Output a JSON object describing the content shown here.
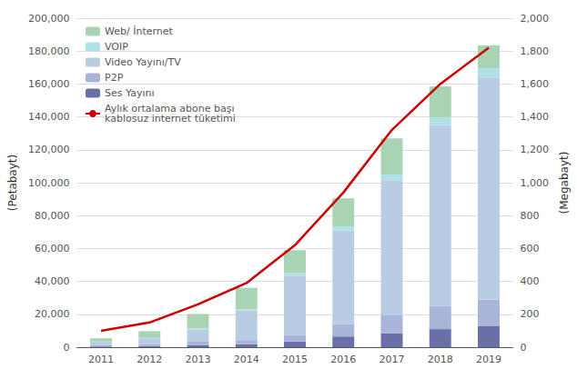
{
  "chart_data": {
    "type": "bar",
    "stacked": true,
    "categories": [
      "2011",
      "2012",
      "2013",
      "2014",
      "2015",
      "2016",
      "2017",
      "2018",
      "2019"
    ],
    "series": [
      {
        "name": "Ses Yayını",
        "color": "#6b6fa8",
        "values": [
          400,
          700,
          1200,
          1800,
          3500,
          6500,
          8500,
          11000,
          13000
        ]
      },
      {
        "name": "P2P",
        "color": "#a8b4d8",
        "values": [
          800,
          1200,
          2500,
          2500,
          4000,
          7500,
          11000,
          14000,
          16000
        ]
      },
      {
        "name": "Video Yayını/TV",
        "color": "#b8cce4",
        "values": [
          2000,
          3500,
          7000,
          18000,
          36000,
          57000,
          82000,
          110000,
          135000
        ]
      },
      {
        "name": "VOIP",
        "color": "#b0e0e8",
        "values": [
          200,
          300,
          500,
          800,
          1500,
          2500,
          3500,
          4500,
          5500
        ]
      },
      {
        "name": "Web/ İnternet",
        "color": "#a8d4b4",
        "values": [
          2000,
          4000,
          9000,
          13000,
          14000,
          17000,
          22000,
          19000,
          14000
        ]
      },
      {
        "name": "Aylık ortalama abone başı",
        "type": "line",
        "axis": "y2",
        "color": "#cc0000",
        "values": [
          100,
          150,
          260,
          390,
          620,
          940,
          1320,
          1600,
          1820
        ]
      }
    ],
    "annotations": [
      "kablosuz internet tüketimi"
    ],
    "ylabel": "(Petabayt)",
    "y2label": "(Megabayt)",
    "ylim": [
      0,
      200000
    ],
    "yticks": [
      0,
      {
        "value": 20000,
        "label": "20,000"
      },
      {
        "value": 40000,
        "label": "40,000"
      },
      {
        "value": 60000,
        "label": "60,000"
      },
      {
        "value": 80000,
        "label": "80,000"
      },
      {
        "value": 100000,
        "label": "100,000"
      },
      {
        "value": 120000,
        "label": "120,000"
      },
      {
        "value": 140000,
        "label": "140,000"
      },
      {
        "value": 160000,
        "label": "160,000"
      },
      {
        "value": 180000,
        "label": "180,000"
      },
      {
        "value": 200000,
        "label": "200,000"
      }
    ],
    "y2lim": [
      0,
      2000
    ],
    "y2ticks": [
      0,
      200,
      400,
      600,
      800,
      {
        "value": 1000,
        "label": "1,000"
      },
      {
        "value": 1200,
        "label": "1,200"
      },
      {
        "value": 1400,
        "label": "1,400"
      },
      {
        "value": 1600,
        "label": "1,600"
      },
      {
        "value": 1800,
        "label": "1,800"
      },
      {
        "value": 2000,
        "label": "2,000"
      }
    ],
    "grid": true,
    "legend": "upper left"
  }
}
